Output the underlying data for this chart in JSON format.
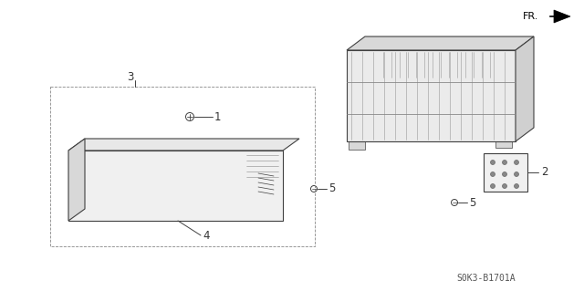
{
  "bg_color": "#ffffff",
  "line_color": "#404040",
  "text_color": "#333333",
  "diagram_code": "S0K3-B1701A",
  "figsize": [
    6.4,
    3.19
  ],
  "dpi": 100
}
